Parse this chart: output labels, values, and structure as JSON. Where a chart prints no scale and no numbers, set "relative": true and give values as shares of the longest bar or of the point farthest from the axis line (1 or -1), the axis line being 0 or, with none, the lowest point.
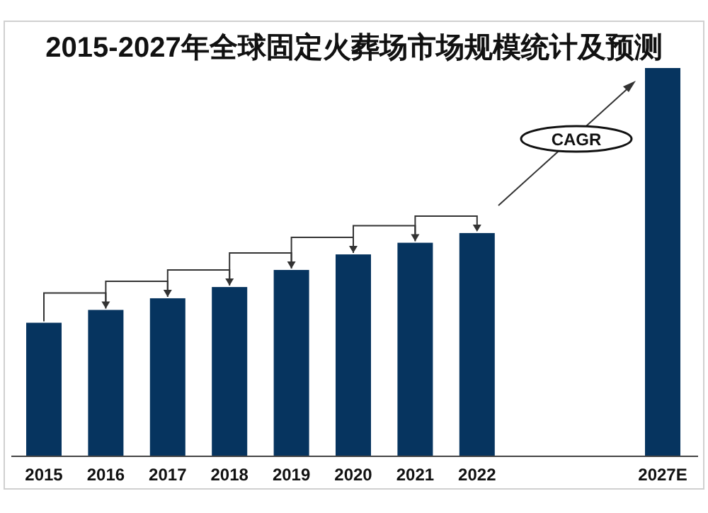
{
  "chart_data": {
    "type": "bar",
    "title": "2015-2027年全球固定火葬场市场规模统计及预测",
    "relative": true,
    "categories": [
      "2015",
      "2016",
      "2017",
      "2018",
      "2019",
      "2020",
      "2021",
      "2022",
      null,
      null,
      "2027E"
    ],
    "values": [
      0.344,
      0.377,
      0.407,
      0.436,
      0.48,
      0.52,
      0.55,
      0.575,
      null,
      null,
      1
    ],
    "color": "#06345f",
    "annotations": [
      "CAGR"
    ]
  }
}
